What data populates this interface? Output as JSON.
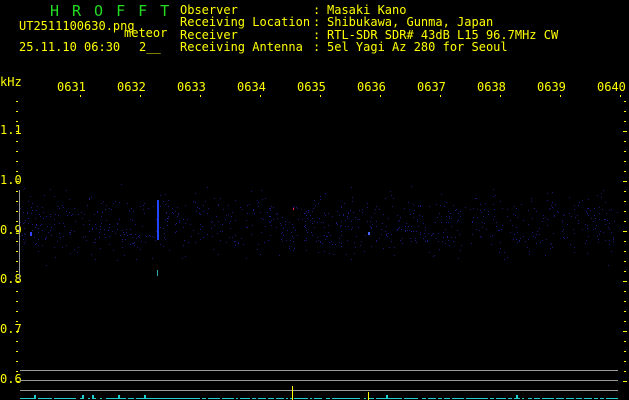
{
  "header": {
    "title": "HROFFT",
    "filename": "UT2511100630.png",
    "mode": "meteor",
    "datetime": "25.11.10 06:30",
    "count": "2__",
    "fields": [
      {
        "label": "Observer",
        "value": "Masaki Kano"
      },
      {
        "label": "Receiving Location",
        "value": "Shibukawa, Gunma, Japan"
      },
      {
        "label": "Receiver",
        "value": "RTL-SDR SDR# 43dB L15 96.7MHz CW"
      },
      {
        "label": "Receiving Antenna",
        "value": "5el Yagi Az 280 for Seoul"
      }
    ],
    "separator": ":"
  },
  "axis": {
    "unit": "kHz",
    "time_labels": [
      "0631",
      "0632",
      "0633",
      "0634",
      "0635",
      "0636",
      "0637",
      "0638",
      "0639",
      "0640"
    ],
    "freq_labels": [
      "1.1",
      "1.0",
      "0.9",
      "0.8",
      "0.7",
      "0.6"
    ]
  },
  "colors": {
    "text": "#ffff00",
    "title": "#22dd22",
    "noise": "#1a1a80",
    "baseline": "#22cccc",
    "grid": "#999999"
  }
}
